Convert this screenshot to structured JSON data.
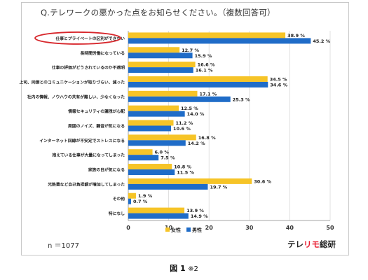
{
  "question": "Q.テレワークの悪かった点をお知らせください。（複数回答可）",
  "sample_size": "n ＝1077",
  "brand": {
    "part1": "テレ",
    "part2": "リモ",
    "part3": "総研"
  },
  "caption": {
    "figure": "図 1",
    "note": "※2"
  },
  "colors": {
    "female": "#f6c427",
    "male": "#1f6cc8",
    "highlight": "#d7262b"
  },
  "chart_data": {
    "type": "bar",
    "orientation": "horizontal",
    "categories": [
      "仕事とプライベートの区別ができない",
      "長時間労働になっている",
      "仕事の評価がどうされているのか不透明",
      "上司、同僚とのコミュニケーションが取りづらい、減った",
      "社内の情報、ノウハウの共有が難しい、少なくなった",
      "情報セキュリティの漏洩が心配",
      "周囲のノイズ、騒音が気になる",
      "インターネット回線が不安定でストレスになる",
      "抱えている仕事が大量になってしまった",
      "家族の目が気になる",
      "光熱費など自己負担額が増加してしまった",
      "その他",
      "特になし"
    ],
    "series": [
      {
        "name": "女性",
        "values": [
          38.9,
          12.7,
          16.6,
          34.5,
          17.1,
          12.5,
          11.2,
          16.8,
          6.0,
          10.8,
          30.6,
          1.9,
          13.9
        ],
        "labels": [
          "38.9 %",
          "12.7 %",
          "16.6 %",
          "34.5 %",
          "17.1 %",
          "12.5 %",
          "11.2 %",
          "16.8 %",
          "6.0 %",
          "10.8 %",
          "30.6 %",
          "1.9 %",
          "13.9 %"
        ]
      },
      {
        "name": "男性",
        "values": [
          45.2,
          15.9,
          16.1,
          34.6,
          25.3,
          14.0,
          10.6,
          14.2,
          7.5,
          11.5,
          19.7,
          0.7,
          14.9
        ],
        "labels": [
          "45.2 %",
          "15.9 %",
          "16.1 %",
          "34.6 %",
          "25.3 %",
          "14.0 %",
          "10.6 %",
          "14.2 %",
          "7.5 %",
          "11.5 %",
          "19.7 %",
          "0.7 %",
          "14.9 %"
        ]
      }
    ],
    "xlim": [
      0,
      50
    ],
    "xticks": [
      "0",
      "10",
      "20",
      "30",
      "40",
      "50"
    ],
    "grid": true,
    "legend_position": "bottom",
    "highlighted_category": "仕事とプライベートの区別ができない"
  }
}
